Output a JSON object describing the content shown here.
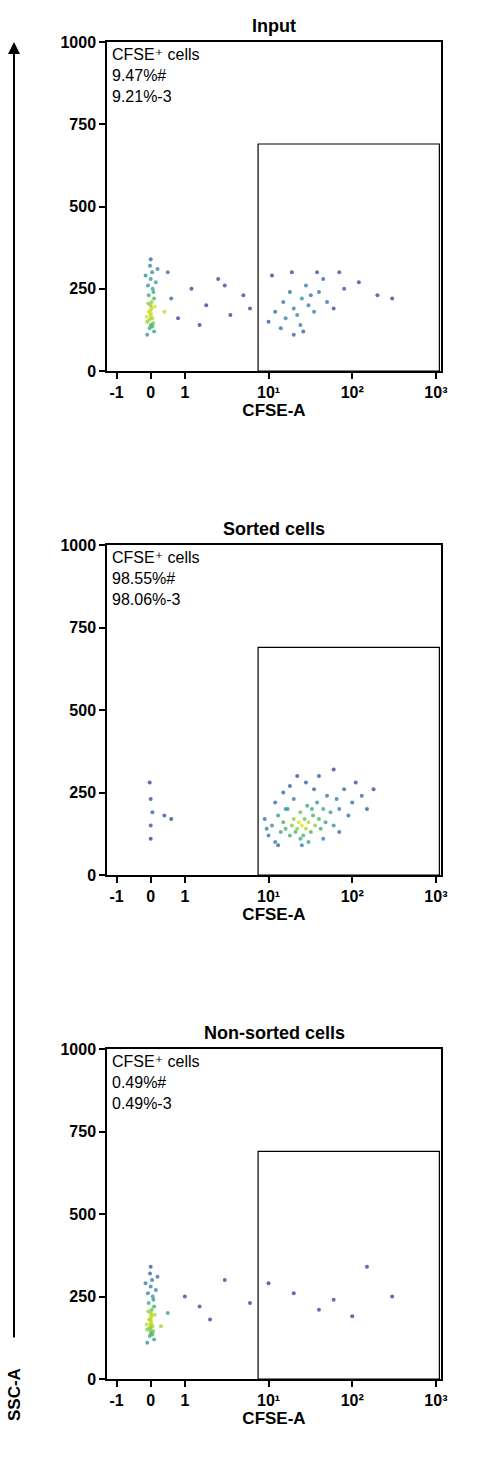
{
  "y_axis_label": "SSC-A",
  "chart_data": [
    {
      "type": "scatter",
      "title": "Input",
      "x_label": "CFSE-A",
      "annotations": [
        "CFSE⁺ cells",
        "9.47%#",
        "9.21%-3"
      ],
      "gate": {
        "x": [
          7.5,
          1100
        ],
        "y": [
          0,
          690
        ]
      },
      "xlim": [
        -1.3,
        1150
      ],
      "xticks": [
        -1,
        0,
        1,
        {
          "value": 10,
          "label": "10¹"
        },
        {
          "value": 100,
          "label": "10²"
        },
        {
          "value": 1000,
          "label": "10³"
        }
      ],
      "ylim": [
        0,
        1000
      ],
      "yticks": [
        0,
        250,
        500,
        750,
        1000
      ],
      "grid": false,
      "x": [
        0,
        0.05,
        -0.05,
        0,
        0.1,
        -0.1,
        0,
        0.02,
        -0.03,
        0.08,
        -0.08,
        0,
        0.04,
        -0.02,
        0,
        0.1,
        -0.1,
        0.03,
        -0.06,
        0.06,
        0,
        0,
        0.07,
        -0.07,
        0.01,
        0.12,
        -0.12,
        0.15,
        -0.15,
        0.2,
        0.05,
        -0.04,
        0.4,
        0.6,
        0.8,
        1.2,
        1.8,
        2.5,
        3.5,
        5,
        0.5,
        1.5,
        6,
        3,
        10,
        12,
        15,
        18,
        20,
        22,
        25,
        28,
        30,
        35,
        40,
        45,
        14,
        16,
        24,
        32,
        50,
        60,
        80,
        120,
        200,
        300,
        11,
        19,
        26,
        38,
        70,
        20
      ],
      "values": [
        140,
        160,
        180,
        200,
        220,
        150,
        170,
        190,
        130,
        240,
        260,
        280,
        300,
        320,
        340,
        120,
        110,
        210,
        230,
        250,
        160,
        185,
        145,
        205,
        175,
        195,
        165,
        270,
        290,
        310,
        135,
        155,
        180,
        220,
        160,
        250,
        200,
        280,
        170,
        230,
        300,
        140,
        190,
        260,
        150,
        180,
        210,
        240,
        190,
        170,
        220,
        260,
        200,
        180,
        240,
        280,
        130,
        160,
        140,
        230,
        210,
        190,
        250,
        270,
        230,
        220,
        290,
        300,
        120,
        300,
        300,
        110
      ]
    },
    {
      "type": "scatter",
      "title": "Sorted cells",
      "x_label": "CFSE-A",
      "annotations": [
        "CFSE⁺ cells",
        "98.55%#",
        "98.06%-3"
      ],
      "gate": {
        "x": [
          7.5,
          1100
        ],
        "y": [
          0,
          690
        ]
      },
      "xlim": [
        -1.3,
        1150
      ],
      "xticks": [
        -1,
        0,
        1,
        {
          "value": 10,
          "label": "10¹"
        },
        {
          "value": 100,
          "label": "10²"
        },
        {
          "value": 1000,
          "label": "10³"
        }
      ],
      "ylim": [
        0,
        1000
      ],
      "yticks": [
        0,
        250,
        500,
        750,
        1000
      ],
      "grid": false,
      "x": [
        0,
        0,
        0.05,
        0,
        -0.03,
        0.4,
        0.6,
        10,
        11,
        12,
        13,
        14,
        15,
        16,
        17,
        18,
        19,
        20,
        21,
        22,
        23,
        24,
        25,
        26,
        27,
        28,
        29,
        30,
        32,
        34,
        36,
        38,
        40,
        42,
        45,
        48,
        50,
        55,
        60,
        65,
        70,
        80,
        90,
        100,
        110,
        130,
        150,
        180,
        15,
        20,
        25,
        30,
        35,
        18,
        22,
        28,
        40,
        60,
        12,
        9,
        9.5,
        13,
        45,
        70,
        16,
        24,
        33
      ],
      "values": [
        110,
        150,
        190,
        230,
        280,
        180,
        170,
        120,
        150,
        100,
        180,
        130,
        160,
        140,
        200,
        120,
        150,
        170,
        130,
        140,
        160,
        190,
        150,
        120,
        170,
        140,
        210,
        160,
        130,
        180,
        150,
        220,
        170,
        140,
        200,
        160,
        240,
        190,
        150,
        230,
        200,
        260,
        180,
        220,
        280,
        240,
        200,
        260,
        250,
        230,
        90,
        100,
        260,
        270,
        300,
        280,
        300,
        320,
        220,
        170,
        140,
        90,
        110,
        130,
        200,
        110,
        200
      ]
    },
    {
      "type": "scatter",
      "title": "Non-sorted cells",
      "x_label": "CFSE-A",
      "annotations": [
        "CFSE⁺ cells",
        "0.49%#",
        "0.49%-3"
      ],
      "gate": {
        "x": [
          7.5,
          1100
        ],
        "y": [
          0,
          690
        ]
      },
      "xlim": [
        -1.3,
        1150
      ],
      "xticks": [
        -1,
        0,
        1,
        {
          "value": 10,
          "label": "10¹"
        },
        {
          "value": 100,
          "label": "10²"
        },
        {
          "value": 1000,
          "label": "10³"
        }
      ],
      "ylim": [
        0,
        1000
      ],
      "yticks": [
        0,
        250,
        500,
        750,
        1000
      ],
      "grid": false,
      "x": [
        0,
        0.05,
        -0.05,
        0,
        0.1,
        -0.1,
        0,
        0.02,
        -0.03,
        0.08,
        -0.08,
        0,
        0.04,
        -0.02,
        0,
        0.1,
        -0.1,
        0.03,
        -0.06,
        0.06,
        0,
        0,
        0.07,
        -0.07,
        0.01,
        0.12,
        -0.12,
        0.15,
        -0.15,
        0.2,
        0.05,
        -0.04,
        0,
        0.02,
        -0.01,
        0.03,
        0.5,
        1,
        2,
        3,
        6,
        10,
        20,
        40,
        60,
        100,
        150,
        300,
        0.3,
        1.5
      ],
      "values": [
        140,
        160,
        180,
        200,
        220,
        150,
        170,
        190,
        130,
        240,
        260,
        280,
        300,
        320,
        340,
        120,
        110,
        210,
        230,
        250,
        160,
        185,
        145,
        205,
        175,
        195,
        165,
        270,
        290,
        310,
        135,
        155,
        150,
        165,
        180,
        195,
        200,
        250,
        180,
        300,
        230,
        290,
        260,
        210,
        240,
        190,
        340,
        250,
        160,
        220
      ]
    }
  ]
}
